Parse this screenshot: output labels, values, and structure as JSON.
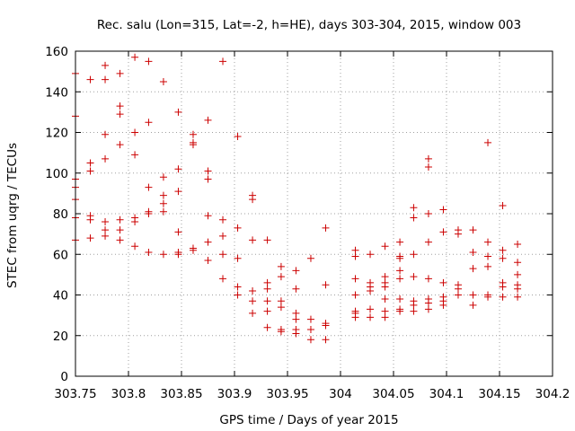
{
  "chart_data": {
    "type": "scatter",
    "title": "Rec. salu (Lon=315, Lat=-2, h=HE), days 303-304, 2015, window 003",
    "xlabel": "GPS time / Days of year 2015",
    "ylabel": "STEC from uqrg / TECUs",
    "xlim": [
      303.75,
      304.2
    ],
    "ylim": [
      0,
      160
    ],
    "x_ticks": [
      "303.75",
      "303.8",
      "303.85",
      "303.9",
      "303.95",
      "304",
      "304.05",
      "304.1",
      "304.15",
      "304.2"
    ],
    "y_ticks": [
      "0",
      "20",
      "40",
      "60",
      "80",
      "100",
      "120",
      "140",
      "160"
    ],
    "grid": true,
    "marker": "+",
    "marker_color": "#cc0000",
    "points": [
      [
        303.75,
        149
      ],
      [
        303.75,
        128
      ],
      [
        303.75,
        97
      ],
      [
        303.75,
        93
      ],
      [
        303.75,
        87
      ],
      [
        303.75,
        78
      ],
      [
        303.75,
        67
      ],
      [
        303.764,
        146
      ],
      [
        303.764,
        105
      ],
      [
        303.764,
        101
      ],
      [
        303.764,
        79
      ],
      [
        303.764,
        77
      ],
      [
        303.764,
        68
      ],
      [
        303.778,
        153
      ],
      [
        303.778,
        146
      ],
      [
        303.778,
        119
      ],
      [
        303.778,
        107
      ],
      [
        303.778,
        76
      ],
      [
        303.778,
        72
      ],
      [
        303.778,
        69
      ],
      [
        303.792,
        149
      ],
      [
        303.792,
        133
      ],
      [
        303.792,
        129
      ],
      [
        303.792,
        114
      ],
      [
        303.792,
        77
      ],
      [
        303.792,
        72
      ],
      [
        303.792,
        67
      ],
      [
        303.806,
        157
      ],
      [
        303.806,
        120
      ],
      [
        303.806,
        109
      ],
      [
        303.806,
        78
      ],
      [
        303.806,
        76
      ],
      [
        303.806,
        64
      ],
      [
        303.819,
        155
      ],
      [
        303.819,
        125
      ],
      [
        303.819,
        93
      ],
      [
        303.819,
        81
      ],
      [
        303.819,
        80
      ],
      [
        303.819,
        61
      ],
      [
        303.833,
        145
      ],
      [
        303.833,
        98
      ],
      [
        303.833,
        89
      ],
      [
        303.833,
        85
      ],
      [
        303.833,
        81
      ],
      [
        303.833,
        60
      ],
      [
        303.847,
        130
      ],
      [
        303.847,
        102
      ],
      [
        303.847,
        91
      ],
      [
        303.847,
        71
      ],
      [
        303.847,
        61
      ],
      [
        303.847,
        60
      ],
      [
        303.861,
        119
      ],
      [
        303.861,
        115
      ],
      [
        303.861,
        114
      ],
      [
        303.861,
        63
      ],
      [
        303.861,
        62
      ],
      [
        303.875,
        126
      ],
      [
        303.875,
        101
      ],
      [
        303.875,
        97
      ],
      [
        303.875,
        79
      ],
      [
        303.875,
        66
      ],
      [
        303.875,
        57
      ],
      [
        303.889,
        155
      ],
      [
        303.889,
        77
      ],
      [
        303.889,
        69
      ],
      [
        303.889,
        60
      ],
      [
        303.889,
        48
      ],
      [
        303.903,
        118
      ],
      [
        303.903,
        73
      ],
      [
        303.903,
        58
      ],
      [
        303.903,
        44
      ],
      [
        303.903,
        40
      ],
      [
        303.917,
        89
      ],
      [
        303.917,
        87
      ],
      [
        303.917,
        67
      ],
      [
        303.917,
        42
      ],
      [
        303.917,
        37
      ],
      [
        303.917,
        31
      ],
      [
        303.931,
        67
      ],
      [
        303.931,
        46
      ],
      [
        303.931,
        43
      ],
      [
        303.931,
        37
      ],
      [
        303.931,
        32
      ],
      [
        303.931,
        24
      ],
      [
        303.944,
        54
      ],
      [
        303.944,
        49
      ],
      [
        303.944,
        37
      ],
      [
        303.944,
        34
      ],
      [
        303.944,
        23
      ],
      [
        303.944,
        22
      ],
      [
        303.958,
        52
      ],
      [
        303.958,
        43
      ],
      [
        303.958,
        31
      ],
      [
        303.958,
        28
      ],
      [
        303.958,
        23
      ],
      [
        303.958,
        21
      ],
      [
        303.972,
        58
      ],
      [
        303.972,
        28
      ],
      [
        303.972,
        23
      ],
      [
        303.972,
        18
      ],
      [
        303.986,
        73
      ],
      [
        303.986,
        45
      ],
      [
        303.986,
        26
      ],
      [
        303.986,
        25
      ],
      [
        303.986,
        18
      ],
      [
        304.014,
        62
      ],
      [
        304.014,
        59
      ],
      [
        304.014,
        48
      ],
      [
        304.014,
        40
      ],
      [
        304.014,
        32
      ],
      [
        304.014,
        31
      ],
      [
        304.014,
        29
      ],
      [
        304.028,
        60
      ],
      [
        304.028,
        46
      ],
      [
        304.028,
        44
      ],
      [
        304.028,
        42
      ],
      [
        304.028,
        33
      ],
      [
        304.028,
        29
      ],
      [
        304.042,
        64
      ],
      [
        304.042,
        49
      ],
      [
        304.042,
        46
      ],
      [
        304.042,
        44
      ],
      [
        304.042,
        38
      ],
      [
        304.042,
        32
      ],
      [
        304.042,
        29
      ],
      [
        304.056,
        66
      ],
      [
        304.056,
        59
      ],
      [
        304.056,
        58
      ],
      [
        304.056,
        52
      ],
      [
        304.056,
        48
      ],
      [
        304.056,
        38
      ],
      [
        304.056,
        33
      ],
      [
        304.056,
        32
      ],
      [
        304.069,
        83
      ],
      [
        304.069,
        78
      ],
      [
        304.069,
        60
      ],
      [
        304.069,
        49
      ],
      [
        304.069,
        37
      ],
      [
        304.069,
        35
      ],
      [
        304.069,
        32
      ],
      [
        304.083,
        107
      ],
      [
        304.083,
        103
      ],
      [
        304.083,
        80
      ],
      [
        304.083,
        66
      ],
      [
        304.083,
        48
      ],
      [
        304.083,
        38
      ],
      [
        304.083,
        36
      ],
      [
        304.083,
        33
      ],
      [
        304.097,
        82
      ],
      [
        304.097,
        71
      ],
      [
        304.097,
        46
      ],
      [
        304.097,
        39
      ],
      [
        304.097,
        37
      ],
      [
        304.097,
        35
      ],
      [
        304.111,
        72
      ],
      [
        304.111,
        70
      ],
      [
        304.111,
        45
      ],
      [
        304.111,
        43
      ],
      [
        304.111,
        40
      ],
      [
        304.125,
        72
      ],
      [
        304.125,
        61
      ],
      [
        304.125,
        53
      ],
      [
        304.125,
        40
      ],
      [
        304.125,
        35
      ],
      [
        304.139,
        115
      ],
      [
        304.139,
        66
      ],
      [
        304.139,
        59
      ],
      [
        304.139,
        54
      ],
      [
        304.139,
        40
      ],
      [
        304.139,
        39
      ],
      [
        304.153,
        84
      ],
      [
        304.153,
        62
      ],
      [
        304.153,
        58
      ],
      [
        304.153,
        46
      ],
      [
        304.153,
        44
      ],
      [
        304.153,
        39
      ],
      [
        304.167,
        65
      ],
      [
        304.167,
        56
      ],
      [
        304.167,
        50
      ],
      [
        304.167,
        45
      ],
      [
        304.167,
        43
      ],
      [
        304.167,
        39
      ]
    ]
  }
}
